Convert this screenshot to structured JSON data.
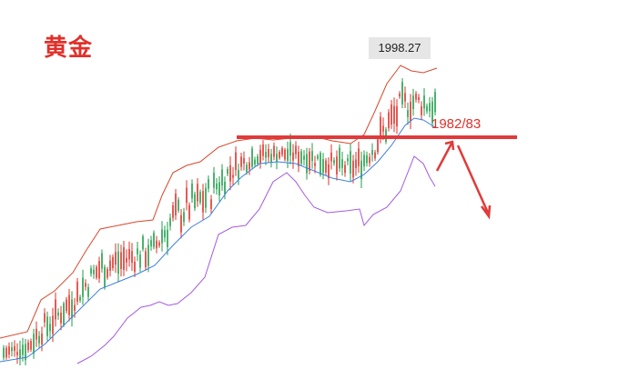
{
  "chart_data": {
    "type": "candlestick",
    "title": "黄金",
    "annotations": {
      "recent_high": "1998.27",
      "resistance_level": "1982/83"
    },
    "indicators": [
      "bollinger-upper",
      "bollinger-middle",
      "bollinger-lower"
    ],
    "colors": {
      "title": "#e0302a",
      "bull_candle": "#e0302a",
      "bear_candle": "#1f9e4a",
      "upper_band": "#d9472b",
      "middle_band": "#3f7fe0",
      "lower_band": "#a35be0",
      "resistance_line": "#e03a3a",
      "arrow": "#e03a3a",
      "label_box": "#e6e6e6"
    },
    "grid": false,
    "axes_shown": false
  }
}
